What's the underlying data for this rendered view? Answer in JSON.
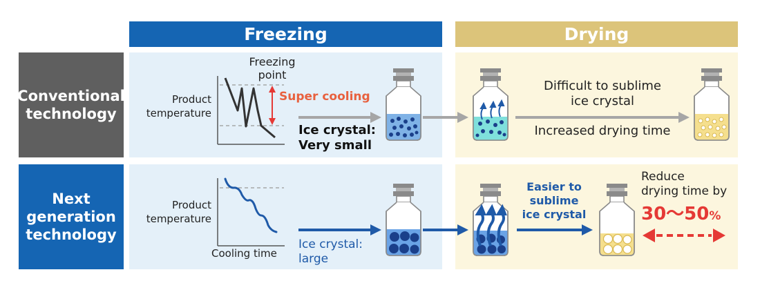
{
  "headers": {
    "freezing": "Freezing",
    "drying": "Drying"
  },
  "rows": {
    "conventional": {
      "label_line1": "Conventional",
      "label_line2": "technology",
      "graph_ylabel_line1": "Product",
      "graph_ylabel_line2": "temperature",
      "freezing_point_line1": "Freezing",
      "freezing_point_line2": "point",
      "super_cooling": "Super cooling",
      "ice_crystal_line1": "Ice crystal:",
      "ice_crystal_line2": "Very small",
      "drying_note_line1": "Difficult to sublime",
      "drying_note_line2": "ice crystal",
      "drying_time": "Increased drying time"
    },
    "next": {
      "label_line1": "Next",
      "label_line2": "generation",
      "label_line3": "technology",
      "graph_ylabel_line1": "Product",
      "graph_ylabel_line2": "temperature",
      "graph_xlabel": "Cooling time",
      "ice_crystal_line1": "Ice crystal:",
      "ice_crystal_line2": "large",
      "drying_note_line1": "Easier to",
      "drying_note_line2": "sublime",
      "drying_note_line3": "ice crystal",
      "reduce_line1": "Reduce",
      "reduce_line2": "drying time by",
      "reduce_value": "30〜50",
      "reduce_unit": "%"
    }
  },
  "colors": {
    "freezing_header": "#1565b3",
    "drying_header": "#dcc47a",
    "conventional_label": "#5f5f5f",
    "next_label": "#1565b3",
    "freezing_panel": "#e4f0f9",
    "drying_panel": "#fcf6de",
    "accent_red": "#e53935",
    "arrow_gray": "#a6a6a6",
    "arrow_blue": "#1f5aa8"
  },
  "icons": {
    "vial": "vial-icon",
    "graph": "temperature-graph",
    "arrow": "arrow-right-icon",
    "vapor": "vapor-arrow-icon",
    "double_arrow": "double-arrow-icon"
  }
}
